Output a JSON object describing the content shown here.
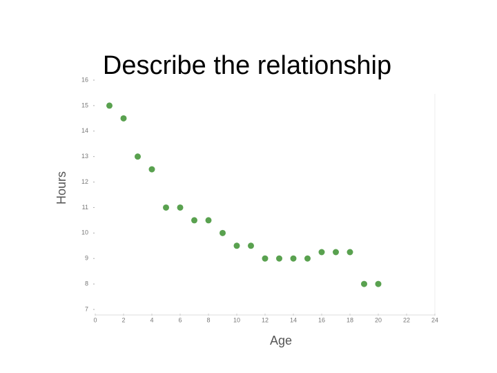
{
  "chart_data": {
    "type": "scatter",
    "title": "Describe the relationship",
    "x_label": "Age",
    "y_label": "Hours",
    "series": [
      {
        "color": "#59a14f",
        "x": [
          1,
          2,
          3,
          4,
          5,
          6,
          7,
          8,
          9,
          10,
          11,
          12,
          13,
          14,
          15,
          16,
          17,
          18,
          19,
          20
        ],
        "values": [
          15,
          14.5,
          13,
          12.5,
          11,
          11,
          10.5,
          10.5,
          10,
          9.5,
          9.5,
          9,
          9,
          9,
          9,
          9.25,
          9.25,
          9.25,
          8,
          8
        ]
      }
    ],
    "xlim": [
      0,
      24
    ],
    "xticks": [
      0,
      2,
      4,
      6,
      8,
      10,
      12,
      14,
      16,
      18,
      20,
      22,
      24
    ],
    "ylim": [
      7,
      16
    ],
    "yticks": [
      7,
      8,
      9,
      10,
      11,
      12,
      13,
      14,
      15,
      16
    ],
    "grid": false
  }
}
